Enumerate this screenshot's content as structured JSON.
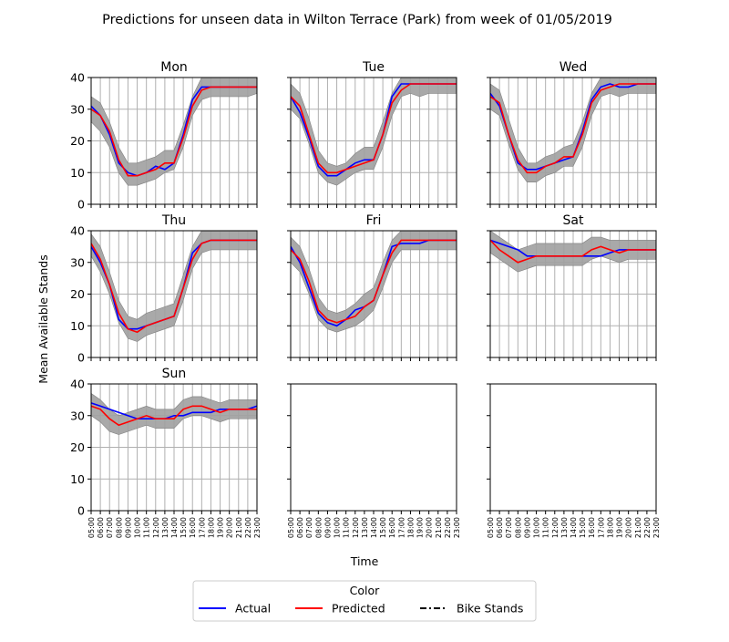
{
  "title": "Predictions for unseen data in Wilton Terrace (Park) from week of 01/05/2019",
  "ylabel": "Mean Available Stands",
  "xlabel": "Time",
  "legend": {
    "title": "Color",
    "entries": [
      {
        "label": "Actual",
        "color": "#0000ff",
        "style": "solid"
      },
      {
        "label": "Predicted",
        "color": "#ff0000",
        "style": "solid"
      },
      {
        "label": "Bike Stands",
        "color": "#000000",
        "style": "dashdot"
      }
    ]
  },
  "colors": {
    "actual": "#0000ff",
    "predicted": "#ff0000",
    "band": "#a0a0a0",
    "grid": "#b0b0b0"
  },
  "chart_data": {
    "type": "line",
    "x": [
      "05:00",
      "06:00",
      "07:00",
      "08:00",
      "09:00",
      "10:00",
      "11:00",
      "12:00",
      "13:00",
      "14:00",
      "15:00",
      "16:00",
      "17:00",
      "18:00",
      "19:00",
      "20:00",
      "21:00",
      "22:00",
      "23:00"
    ],
    "ylim": [
      0,
      40
    ],
    "yticks": [
      0,
      10,
      20,
      30,
      40
    ],
    "grid": true,
    "legend_position": "bottom-center",
    "panels": [
      {
        "title": "Mon",
        "actual": [
          31,
          28,
          22,
          13,
          10,
          9,
          10,
          12,
          11,
          13,
          22,
          33,
          37,
          37,
          37,
          37,
          37,
          37,
          37
        ],
        "predicted": [
          30,
          28,
          23,
          14,
          9,
          9,
          10,
          11,
          13,
          13,
          21,
          31,
          36,
          37,
          37,
          37,
          37,
          37,
          37
        ],
        "band_lower": [
          26,
          23,
          18,
          10,
          6,
          6,
          7,
          8,
          10,
          11,
          18,
          28,
          33,
          34,
          34,
          34,
          34,
          34,
          35
        ],
        "band_upper": [
          34,
          32,
          26,
          18,
          13,
          13,
          14,
          15,
          17,
          17,
          25,
          34,
          40,
          40,
          40,
          40,
          40,
          40,
          40
        ]
      },
      {
        "title": "Tue",
        "actual": [
          34,
          29,
          21,
          12,
          9,
          9,
          11,
          13,
          14,
          14,
          22,
          34,
          38,
          38,
          38,
          38,
          38,
          38,
          38
        ],
        "predicted": [
          34,
          31,
          22,
          13,
          10,
          10,
          11,
          12,
          13,
          14,
          22,
          32,
          36,
          38,
          38,
          38,
          38,
          38,
          38
        ],
        "band_lower": [
          30,
          27,
          19,
          10,
          7,
          6,
          8,
          10,
          11,
          11,
          18,
          28,
          34,
          35,
          34,
          35,
          35,
          35,
          35
        ],
        "band_upper": [
          38,
          35,
          27,
          17,
          13,
          12,
          13,
          16,
          18,
          18,
          26,
          35,
          40,
          40,
          40,
          40,
          40,
          40,
          40
        ]
      },
      {
        "title": "Wed",
        "actual": [
          35,
          31,
          22,
          13,
          11,
          11,
          12,
          13,
          14,
          15,
          23,
          33,
          37,
          38,
          37,
          37,
          38,
          38,
          38
        ],
        "predicted": [
          34,
          32,
          22,
          14,
          10,
          10,
          12,
          13,
          15,
          15,
          22,
          32,
          36,
          37,
          38,
          38,
          38,
          38,
          38
        ],
        "band_lower": [
          30,
          28,
          19,
          11,
          7,
          7,
          9,
          10,
          12,
          12,
          18,
          28,
          34,
          35,
          34,
          35,
          35,
          35,
          35
        ],
        "band_upper": [
          38,
          36,
          27,
          18,
          13,
          13,
          15,
          16,
          18,
          19,
          26,
          35,
          40,
          40,
          40,
          40,
          40,
          40,
          40
        ]
      },
      {
        "title": "Thu",
        "actual": [
          35,
          30,
          23,
          12,
          9,
          9,
          10,
          11,
          12,
          13,
          22,
          33,
          36,
          37,
          37,
          37,
          37,
          37,
          37
        ],
        "predicted": [
          36,
          31,
          23,
          14,
          9,
          8,
          10,
          11,
          12,
          13,
          22,
          31,
          36,
          37,
          37,
          37,
          37,
          37,
          37
        ],
        "band_lower": [
          32,
          27,
          20,
          11,
          6,
          5,
          7,
          8,
          9,
          10,
          18,
          28,
          33,
          34,
          34,
          34,
          34,
          34,
          34
        ],
        "band_upper": [
          39,
          35,
          27,
          18,
          13,
          12,
          14,
          15,
          16,
          17,
          26,
          35,
          40,
          40,
          40,
          40,
          40,
          40,
          40
        ]
      },
      {
        "title": "Fri",
        "actual": [
          35,
          30,
          22,
          14,
          11,
          10,
          12,
          15,
          16,
          18,
          26,
          35,
          36,
          36,
          36,
          37,
          37,
          37,
          37
        ],
        "predicted": [
          34,
          31,
          24,
          15,
          12,
          11,
          12,
          13,
          16,
          18,
          26,
          33,
          37,
          37,
          37,
          37,
          37,
          37,
          37
        ],
        "band_lower": [
          30,
          27,
          20,
          12,
          9,
          8,
          9,
          10,
          12,
          15,
          22,
          30,
          34,
          34,
          34,
          34,
          34,
          34,
          34
        ],
        "band_upper": [
          38,
          35,
          28,
          19,
          15,
          14,
          15,
          17,
          20,
          22,
          30,
          37,
          40,
          40,
          40,
          40,
          40,
          40,
          40
        ]
      },
      {
        "title": "Sat",
        "actual": [
          37,
          36,
          35,
          34,
          32,
          32,
          32,
          32,
          32,
          32,
          32,
          32,
          32,
          33,
          34,
          34,
          34,
          34,
          34
        ],
        "predicted": [
          37,
          34,
          32,
          30,
          31,
          32,
          32,
          32,
          32,
          32,
          32,
          34,
          35,
          34,
          33,
          34,
          34,
          34,
          34
        ],
        "band_lower": [
          33,
          31,
          29,
          27,
          28,
          29,
          29,
          29,
          29,
          29,
          29,
          31,
          32,
          31,
          30,
          31,
          31,
          31,
          31
        ],
        "band_upper": [
          40,
          38,
          36,
          34,
          35,
          36,
          36,
          36,
          36,
          36,
          36,
          38,
          38,
          37,
          37,
          37,
          37,
          37,
          37
        ]
      },
      {
        "title": "Sun",
        "actual": [
          34,
          33,
          32,
          31,
          30,
          29,
          29,
          29,
          29,
          30,
          30,
          31,
          31,
          31,
          32,
          32,
          32,
          32,
          33
        ],
        "predicted": [
          33,
          32,
          29,
          27,
          28,
          29,
          30,
          29,
          29,
          29,
          32,
          33,
          33,
          32,
          31,
          32,
          32,
          32,
          32
        ],
        "band_lower": [
          30,
          28,
          25,
          24,
          25,
          26,
          27,
          26,
          26,
          26,
          29,
          30,
          30,
          29,
          28,
          29,
          29,
          29,
          29
        ],
        "band_upper": [
          37,
          35,
          32,
          30,
          31,
          32,
          33,
          32,
          32,
          32,
          35,
          36,
          36,
          35,
          34,
          35,
          35,
          35,
          35
        ]
      },
      {
        "title": "",
        "actual": [],
        "predicted": [],
        "band_lower": [],
        "band_upper": []
      },
      {
        "title": "",
        "actual": [],
        "predicted": [],
        "band_lower": [],
        "band_upper": []
      }
    ]
  }
}
